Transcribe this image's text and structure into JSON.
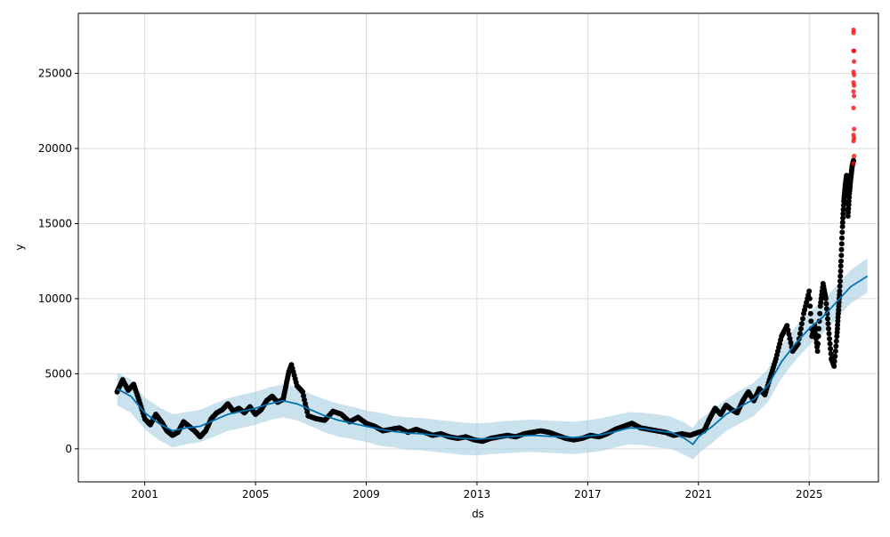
{
  "chart_data": {
    "type": "line",
    "title": "",
    "xlabel": "ds",
    "ylabel": "y",
    "xlim": [
      1998.6,
      2027.5
    ],
    "ylim": [
      -2200,
      29000
    ],
    "grid": true,
    "x_ticks": [
      2001,
      2005,
      2009,
      2013,
      2017,
      2021,
      2025
    ],
    "x_tick_labels": [
      "2001",
      "2005",
      "2009",
      "2013",
      "2017",
      "2021",
      "2025"
    ],
    "y_ticks": [
      0,
      5000,
      10000,
      15000,
      20000,
      25000
    ],
    "y_tick_labels": [
      "0",
      "5000",
      "10000",
      "15000",
      "20000",
      "25000"
    ],
    "colors": {
      "observed": "#000000",
      "forecast": "#0072B2",
      "interval": "#a6cee3",
      "outlier": "#ff0000",
      "grid": "#dcdcdc"
    },
    "series": [
      {
        "role": "forecast",
        "x": [
          2000.0,
          2000.5,
          2001.0,
          2001.5,
          2002.0,
          2002.5,
          2003.0,
          2003.5,
          2004.0,
          2004.5,
          2005.0,
          2005.5,
          2006.0,
          2006.5,
          2007.0,
          2007.5,
          2008.0,
          2008.5,
          2009.0,
          2009.5,
          2010.0,
          2010.5,
          2011.0,
          2011.5,
          2012.0,
          2012.5,
          2013.0,
          2013.5,
          2014.0,
          2014.5,
          2015.0,
          2015.5,
          2016.0,
          2016.5,
          2017.0,
          2017.5,
          2018.0,
          2018.5,
          2019.0,
          2019.5,
          2020.0,
          2020.5,
          2020.8,
          2021.0,
          2021.5,
          2022.0,
          2022.5,
          2023.0,
          2023.5,
          2024.0,
          2024.5,
          2025.0,
          2025.5,
          2026.0,
          2026.5,
          2027.1
        ],
        "values": [
          4000,
          3500,
          2400,
          1700,
          1200,
          1400,
          1500,
          1900,
          2300,
          2500,
          2700,
          3000,
          3200,
          3000,
          2600,
          2200,
          1900,
          1700,
          1500,
          1300,
          1150,
          1050,
          1000,
          900,
          800,
          700,
          650,
          700,
          800,
          850,
          900,
          850,
          800,
          750,
          850,
          950,
          1150,
          1400,
          1350,
          1200,
          1100,
          700,
          300,
          800,
          1500,
          2300,
          2800,
          3300,
          4200,
          5800,
          7000,
          8000,
          8800,
          9800,
          10800,
          11500
        ]
      }
    ],
    "interval": {
      "x": [
        2000.0,
        2000.5,
        2001.0,
        2001.5,
        2002.0,
        2002.5,
        2003.0,
        2003.5,
        2004.0,
        2004.5,
        2005.0,
        2005.5,
        2006.0,
        2006.5,
        2007.0,
        2007.5,
        2008.0,
        2008.5,
        2009.0,
        2009.5,
        2010.0,
        2010.5,
        2011.0,
        2011.5,
        2012.0,
        2012.5,
        2013.0,
        2013.5,
        2014.0,
        2014.5,
        2015.0,
        2015.5,
        2016.0,
        2016.5,
        2017.0,
        2017.5,
        2018.0,
        2018.5,
        2019.0,
        2019.5,
        2020.0,
        2020.5,
        2020.8,
        2021.0,
        2021.5,
        2022.0,
        2022.5,
        2023.0,
        2023.5,
        2024.0,
        2024.5,
        2025.0,
        2025.5,
        2026.0,
        2026.5,
        2027.1
      ],
      "upper": [
        5100,
        4600,
        3400,
        2800,
        2300,
        2450,
        2600,
        3000,
        3350,
        3600,
        3800,
        4100,
        4300,
        4100,
        3650,
        3300,
        3000,
        2800,
        2550,
        2400,
        2200,
        2100,
        2050,
        1950,
        1850,
        1750,
        1700,
        1750,
        1850,
        1900,
        1950,
        1900,
        1850,
        1800,
        1900,
        2050,
        2250,
        2450,
        2400,
        2300,
        2150,
        1750,
        1400,
        1900,
        2600,
        3300,
        3900,
        4400,
        5300,
        6900,
        8100,
        9100,
        9900,
        10900,
        11900,
        12700
      ],
      "lower": [
        2900,
        2400,
        1300,
        600,
        100,
        300,
        450,
        800,
        1200,
        1400,
        1600,
        1900,
        2100,
        1900,
        1500,
        1100,
        800,
        650,
        450,
        200,
        100,
        -50,
        -100,
        -200,
        -300,
        -400,
        -450,
        -350,
        -300,
        -250,
        -200,
        -250,
        -300,
        -350,
        -250,
        -150,
        100,
        300,
        250,
        100,
        0,
        -400,
        -700,
        -300,
        400,
        1200,
        1700,
        2200,
        3100,
        4700,
        5900,
        6900,
        7700,
        8700,
        9700,
        10400
      ]
    },
    "observed": {
      "x": [
        2000.0,
        2000.2,
        2000.4,
        2000.6,
        2000.8,
        2001.0,
        2001.2,
        2001.4,
        2001.6,
        2001.8,
        2002.0,
        2002.2,
        2002.4,
        2002.6,
        2002.8,
        2003.0,
        2003.2,
        2003.4,
        2003.6,
        2003.8,
        2004.0,
        2004.2,
        2004.4,
        2004.6,
        2004.8,
        2005.0,
        2005.2,
        2005.4,
        2005.6,
        2005.8,
        2006.0,
        2006.1,
        2006.2,
        2006.3,
        2006.5,
        2006.7,
        2006.9,
        2007.2,
        2007.5,
        2007.8,
        2008.1,
        2008.4,
        2008.7,
        2009.0,
        2009.3,
        2009.6,
        2009.9,
        2010.2,
        2010.5,
        2010.8,
        2011.1,
        2011.4,
        2011.7,
        2012.0,
        2012.3,
        2012.6,
        2012.9,
        2013.2,
        2013.5,
        2013.8,
        2014.1,
        2014.4,
        2014.7,
        2015.0,
        2015.3,
        2015.6,
        2015.9,
        2016.2,
        2016.5,
        2016.8,
        2017.1,
        2017.4,
        2017.7,
        2018.0,
        2018.3,
        2018.6,
        2018.9,
        2019.2,
        2019.5,
        2019.8,
        2020.1,
        2020.4,
        2020.7,
        2021.0,
        2021.2,
        2021.4,
        2021.6,
        2021.8,
        2022.0,
        2022.2,
        2022.4,
        2022.6,
        2022.8,
        2023.0,
        2023.2,
        2023.4,
        2023.6,
        2023.8,
        2024.0,
        2024.2,
        2024.4,
        2024.6,
        2024.8,
        2025.0,
        2025.1,
        2025.2,
        2025.3,
        2025.4,
        2025.5,
        2025.6,
        2025.7,
        2025.8,
        2025.9,
        2026.0,
        2026.05,
        2026.1,
        2026.15,
        2026.2,
        2026.25,
        2026.3,
        2026.35,
        2026.4,
        2026.45,
        2026.5,
        2026.55,
        2026.6
      ],
      "values": [
        3800,
        4600,
        3900,
        4300,
        3200,
        2000,
        1600,
        2300,
        1800,
        1200,
        900,
        1100,
        1800,
        1500,
        1200,
        800,
        1200,
        2000,
        2400,
        2600,
        3000,
        2500,
        2700,
        2400,
        2800,
        2300,
        2600,
        3200,
        3500,
        3100,
        3300,
        4200,
        5100,
        5600,
        4200,
        3800,
        2200,
        2000,
        1900,
        2500,
        2300,
        1800,
        2100,
        1700,
        1500,
        1200,
        1300,
        1400,
        1100,
        1300,
        1100,
        900,
        1000,
        800,
        700,
        800,
        600,
        500,
        700,
        800,
        900,
        800,
        1000,
        1100,
        1200,
        1100,
        900,
        700,
        600,
        700,
        900,
        800,
        1000,
        1300,
        1500,
        1700,
        1400,
        1300,
        1200,
        1100,
        900,
        1000,
        900,
        1100,
        1200,
        2000,
        2700,
        2300,
        2900,
        2600,
        2400,
        3200,
        3800,
        3200,
        4000,
        3600,
        4800,
        6000,
        7500,
        8200,
        6500,
        7000,
        9000,
        10500,
        7500,
        8200,
        6500,
        9500,
        11000,
        10000,
        8000,
        6000,
        5500,
        7500,
        9000,
        10500,
        12500,
        14800,
        16500,
        17500,
        18200,
        15500,
        17000,
        18000,
        18800,
        19200
      ]
    },
    "outliers": {
      "x": [
        2026.6,
        2026.6,
        2026.62,
        2026.6,
        2026.62,
        2026.6,
        2026.62,
        2026.6,
        2026.62,
        2026.6,
        2026.62,
        2026.6,
        2026.62,
        2026.6,
        2026.62,
        2026.6,
        2026.62,
        2026.6
      ],
      "values": [
        27900,
        27700,
        26500,
        26500,
        25800,
        25100,
        24900,
        24400,
        24200,
        23800,
        23500,
        22700,
        21300,
        20900,
        20700,
        20500,
        19500,
        19000
      ]
    }
  }
}
